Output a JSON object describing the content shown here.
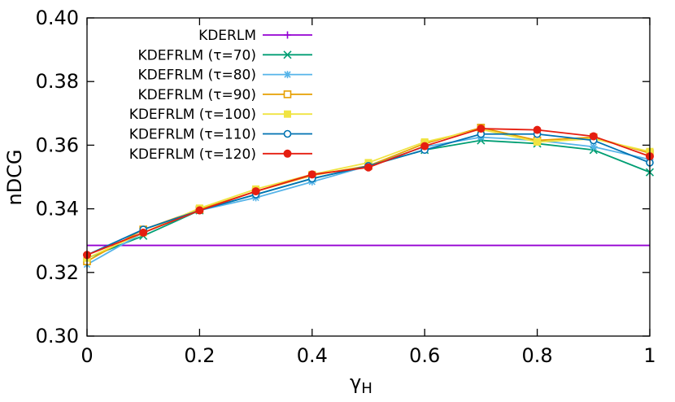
{
  "chart_data": {
    "type": "line",
    "title": "",
    "xlabel": "γ",
    "xlabel_sub": "H",
    "ylabel": "nDCG",
    "xlim": [
      0,
      1
    ],
    "ylim": [
      0.3,
      0.4
    ],
    "x": [
      0,
      0.1,
      0.2,
      0.3,
      0.4,
      0.5,
      0.6,
      0.7,
      0.8,
      0.9,
      1.0
    ],
    "x_ticks": [
      0,
      0.2,
      0.4,
      0.6,
      0.8,
      1
    ],
    "x_tick_labels": [
      "0",
      "0.2",
      "0.4",
      "0.6",
      "0.8",
      "1"
    ],
    "y_ticks": [
      0.3,
      0.32,
      0.34,
      0.36,
      0.38,
      0.4
    ],
    "y_tick_labels": [
      "0.30",
      "0.32",
      "0.34",
      "0.36",
      "0.38",
      "0.40"
    ],
    "legend_position": "top-left",
    "series": [
      {
        "name": "KDERLM",
        "color": "#9400d3",
        "marker": "plus",
        "values": [
          0.3285,
          0.3285,
          0.3285,
          0.3285,
          0.3285,
          0.3285,
          0.3285,
          0.3285,
          0.3285,
          0.3285,
          0.3285
        ]
      },
      {
        "name": "KDEFRLM (τ=70)",
        "color": "#009e73",
        "marker": "cross",
        "values": [
          0.3245,
          0.3315,
          0.3395,
          0.3445,
          0.3495,
          0.3535,
          0.3585,
          0.3615,
          0.3605,
          0.3585,
          0.3515
        ]
      },
      {
        "name": "KDEFRLM (τ=80)",
        "color": "#56b4e9",
        "marker": "star",
        "values": [
          0.3225,
          0.3325,
          0.3395,
          0.3435,
          0.3485,
          0.3535,
          0.3595,
          0.3625,
          0.3615,
          0.3595,
          0.3555
        ]
      },
      {
        "name": "KDEFRLM (τ=90)",
        "color": "#e69f00",
        "marker": "square-open",
        "values": [
          0.3235,
          0.3335,
          0.3398,
          0.3455,
          0.3505,
          0.3535,
          0.3605,
          0.3655,
          0.3615,
          0.3625,
          0.3575
        ]
      },
      {
        "name": "KDEFRLM (τ=100)",
        "color": "#f0e442",
        "marker": "square-filled",
        "values": [
          0.3245,
          0.3325,
          0.3402,
          0.3462,
          0.3508,
          0.3545,
          0.361,
          0.365,
          0.361,
          0.362,
          0.358
        ]
      },
      {
        "name": "KDEFRLM (τ=110)",
        "color": "#0072b2",
        "marker": "circle-open",
        "values": [
          0.3255,
          0.3335,
          0.3395,
          0.3445,
          0.3495,
          0.3535,
          0.3585,
          0.3635,
          0.3635,
          0.3615,
          0.3545
        ]
      },
      {
        "name": "KDEFRLM (τ=120)",
        "color": "#e51e10",
        "marker": "circle-filled",
        "values": [
          0.3255,
          0.3325,
          0.3395,
          0.3455,
          0.3508,
          0.353,
          0.3597,
          0.3652,
          0.3648,
          0.3628,
          0.3565
        ]
      }
    ]
  }
}
